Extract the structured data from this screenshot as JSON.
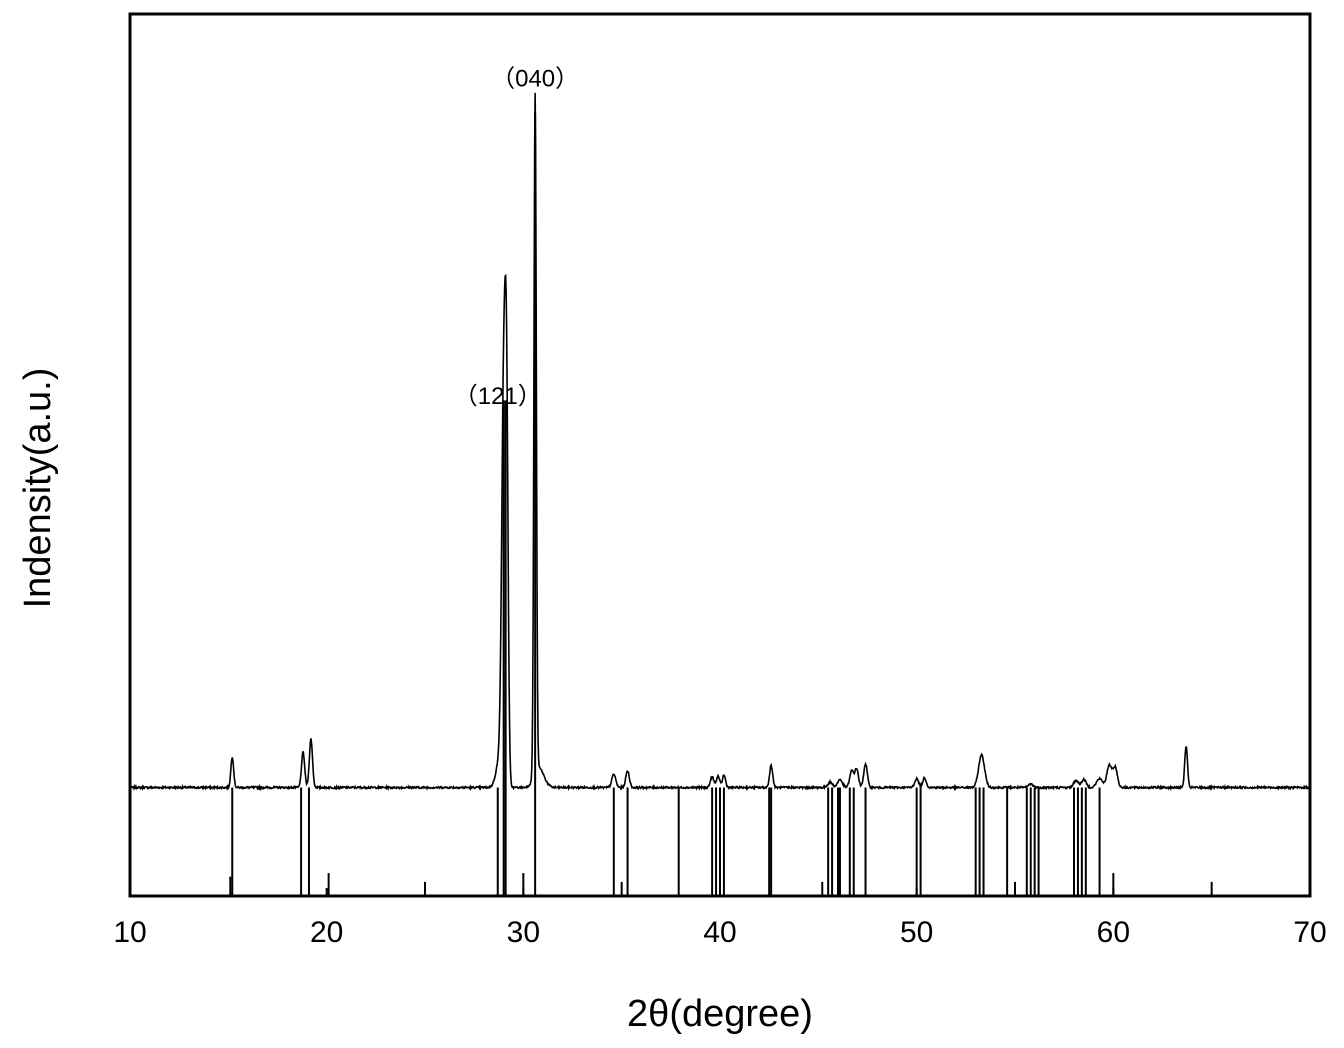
{
  "chart_data": {
    "type": "line",
    "title": "",
    "xlabel": "2θ(degree)",
    "ylabel": "Indensity(a.u.)",
    "xlim": [
      10,
      70
    ],
    "ylim": [
      0,
      100
    ],
    "x_ticks": [
      10,
      20,
      30,
      40,
      50,
      60,
      70
    ],
    "y_ticks": [],
    "grid": false,
    "legend": "none",
    "colors": {
      "line": "#000000",
      "axes": "#000000",
      "background": "#ffffff"
    },
    "baseline_intensity": 12.3,
    "series": [
      {
        "peaks": [
          {
            "x": 15.2,
            "y": 15.8,
            "w": 0.07
          },
          {
            "x": 18.8,
            "y": 16.3,
            "w": 0.08
          },
          {
            "x": 19.2,
            "y": 17.8,
            "w": 0.08
          },
          {
            "x": 28.8,
            "y": 15.5,
            "w": 0.18
          },
          {
            "x": 29.0,
            "y": 55.5,
            "w": 0.1
          },
          {
            "x": 29.15,
            "y": 50.0,
            "w": 0.08
          },
          {
            "x": 30.6,
            "y": 89.5,
            "w": 0.06
          },
          {
            "x": 30.8,
            "y": 14.5,
            "w": 0.25
          },
          {
            "x": 34.6,
            "y": 13.8,
            "w": 0.1
          },
          {
            "x": 35.3,
            "y": 14.2,
            "w": 0.09
          },
          {
            "x": 39.6,
            "y": 13.5,
            "w": 0.09
          },
          {
            "x": 39.9,
            "y": 13.6,
            "w": 0.08
          },
          {
            "x": 40.2,
            "y": 13.7,
            "w": 0.08
          },
          {
            "x": 42.6,
            "y": 14.8,
            "w": 0.08
          },
          {
            "x": 45.6,
            "y": 12.9,
            "w": 0.12
          },
          {
            "x": 46.1,
            "y": 13.2,
            "w": 0.12
          },
          {
            "x": 46.7,
            "y": 14.2,
            "w": 0.1
          },
          {
            "x": 46.95,
            "y": 14.4,
            "w": 0.09
          },
          {
            "x": 47.4,
            "y": 15.0,
            "w": 0.09
          },
          {
            "x": 50.0,
            "y": 13.3,
            "w": 0.1
          },
          {
            "x": 50.4,
            "y": 13.4,
            "w": 0.09
          },
          {
            "x": 53.3,
            "y": 16.0,
            "w": 0.15
          },
          {
            "x": 55.8,
            "y": 12.7,
            "w": 0.12
          },
          {
            "x": 58.1,
            "y": 13.1,
            "w": 0.12
          },
          {
            "x": 58.5,
            "y": 13.2,
            "w": 0.12
          },
          {
            "x": 59.3,
            "y": 13.3,
            "w": 0.15
          },
          {
            "x": 59.8,
            "y": 14.8,
            "w": 0.13
          },
          {
            "x": 60.1,
            "y": 14.5,
            "w": 0.11
          },
          {
            "x": 63.7,
            "y": 17.0,
            "w": 0.07
          }
        ]
      }
    ],
    "reference_lines": {
      "x": [
        15.1,
        15.2,
        18.7,
        19.1,
        20.1,
        25.0,
        28.7,
        29.0,
        29.1,
        30.0,
        30.6,
        34.6,
        35.0,
        35.3,
        37.9,
        39.6,
        39.8,
        40.0,
        40.2,
        42.5,
        42.6,
        45.2,
        45.5,
        45.7,
        46.0,
        46.1,
        46.6,
        46.8,
        47.4,
        50.0,
        50.2,
        53.0,
        53.2,
        53.4,
        54.6,
        55.0,
        55.6,
        55.8,
        56.0,
        56.2,
        58.0,
        58.2,
        58.4,
        58.6,
        59.3,
        60.0,
        65.0
      ],
      "height": [
        2.2,
        12.3,
        12.3,
        12.3,
        2.6,
        1.6,
        12.3,
        56.2,
        56.2,
        2.6,
        88.8,
        12.3,
        1.6,
        12.3,
        12.3,
        12.3,
        12.3,
        12.3,
        12.3,
        12.3,
        12.3,
        1.6,
        12.3,
        12.3,
        12.3,
        12.3,
        12.3,
        12.3,
        12.3,
        12.3,
        12.3,
        12.3,
        12.3,
        12.3,
        12.3,
        1.6,
        12.3,
        12.3,
        12.3,
        12.3,
        12.3,
        12.3,
        12.3,
        12.3,
        12.3,
        2.6,
        1.6
      ]
    },
    "annotations": [
      {
        "text": "（040）",
        "x": 30.6,
        "y": 91.8
      },
      {
        "text": "（121）",
        "x": 28.7,
        "y": 55.8
      }
    ]
  }
}
